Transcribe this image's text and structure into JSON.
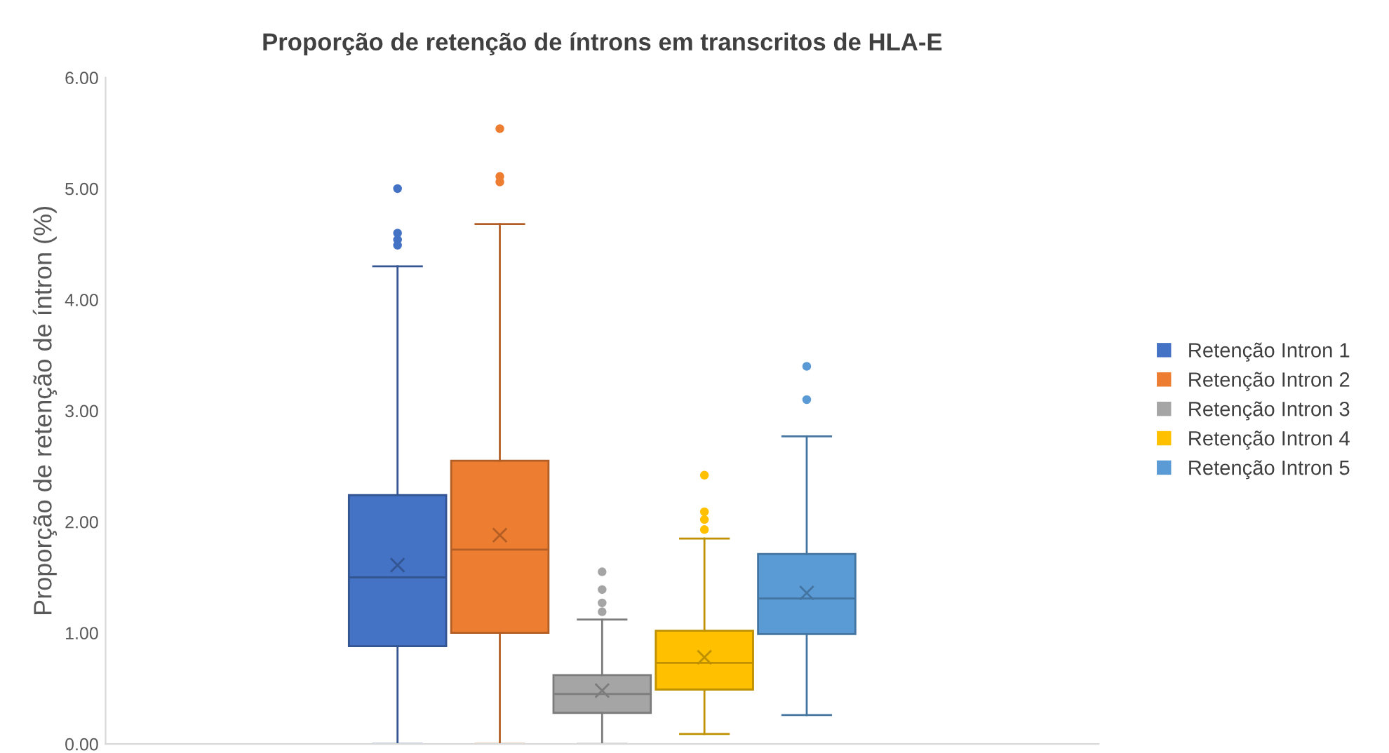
{
  "chart_data": {
    "type": "box",
    "title": "Proporção de retenção de íntrons em transcritos de HLA-E",
    "ylabel": "Proporção de retenção de íntron (%)",
    "categories": [
      null
    ],
    "ylim": [
      0,
      6
    ],
    "yticks": [
      {
        "value": 0,
        "label": "0.00"
      },
      {
        "value": 1,
        "label": "1.00"
      },
      {
        "value": 2,
        "label": "2.00"
      },
      {
        "value": 3,
        "label": "3.00"
      },
      {
        "value": 4,
        "label": "4.00"
      },
      {
        "value": 5,
        "label": "5.00"
      },
      {
        "value": 6,
        "label": "6.00"
      }
    ],
    "grid": false,
    "legend": "right",
    "marker": "circle",
    "series": [
      {
        "name": "Retenção Intron 1",
        "color": "#4472c4",
        "boxes": [
          {
            "low": 0,
            "q1": 0.88,
            "median": 1.5,
            "q3": 2.24,
            "high": 4.3,
            "mean": 1.61,
            "outliers": [
              5.0,
              4.6,
              4.54,
              4.49
            ]
          }
        ]
      },
      {
        "name": "Retenção Intron 2",
        "color": "#ed7d31",
        "boxes": [
          {
            "low": 0,
            "q1": 1.0,
            "median": 1.75,
            "q3": 2.55,
            "high": 4.68,
            "mean": 1.88,
            "outliers": [
              5.54,
              5.11,
              5.06
            ]
          }
        ]
      },
      {
        "name": "Retenção Intron 3",
        "color": "#a5a5a5",
        "boxes": [
          {
            "low": 0,
            "q1": 0.28,
            "median": 0.45,
            "q3": 0.62,
            "high": 1.12,
            "mean": 0.48,
            "outliers": [
              1.55,
              1.39,
              1.27,
              1.19
            ]
          }
        ]
      },
      {
        "name": "Retenção Intron 4",
        "color": "#ffc000",
        "boxes": [
          {
            "low": 0.09,
            "q1": 0.49,
            "median": 0.73,
            "q3": 1.02,
            "high": 1.85,
            "mean": 0.78,
            "outliers": [
              2.42,
              2.09,
              2.02,
              1.93
            ]
          }
        ]
      },
      {
        "name": "Retenção Intron 5",
        "color": "#5b9bd5",
        "boxes": [
          {
            "low": 0.26,
            "q1": 0.99,
            "median": 1.31,
            "q3": 1.71,
            "high": 2.77,
            "mean": 1.36,
            "outliers": [
              3.4,
              3.1
            ]
          }
        ]
      }
    ]
  }
}
